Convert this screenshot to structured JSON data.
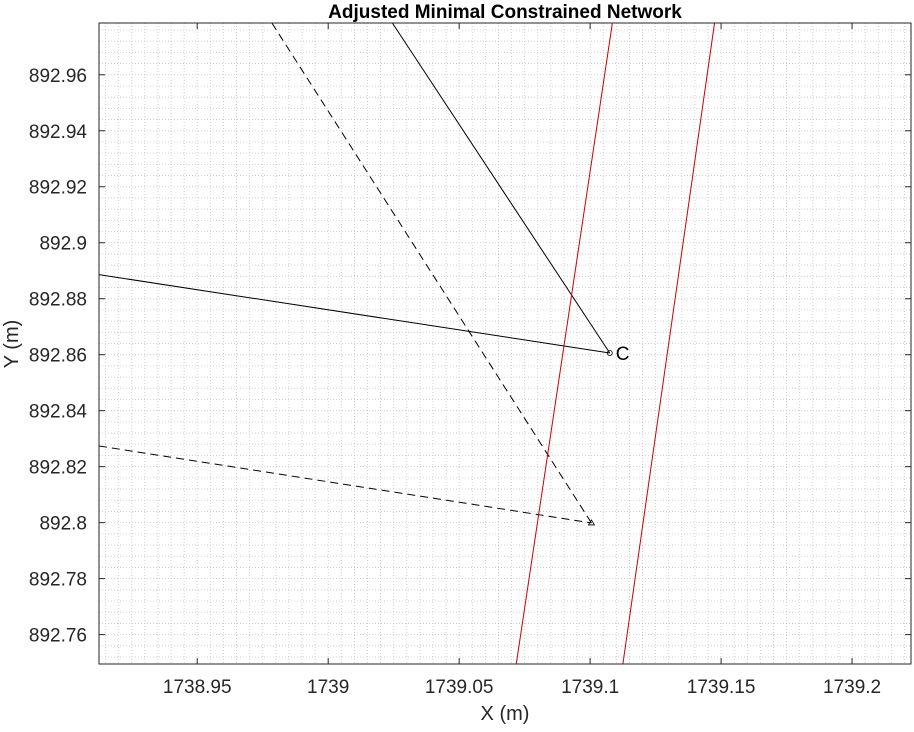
{
  "chart_data": {
    "type": "line",
    "title": "Adjusted Minimal Constrained Network",
    "xlabel": "X (m)",
    "ylabel": "Y (m)",
    "xlim": [
      1738.9125,
      1739.2225
    ],
    "ylim": [
      892.7495,
      892.9785
    ],
    "grid": "minor-dotted",
    "xticks": [
      1738.95,
      1739,
      1739.05,
      1739.1,
      1739.15,
      1739.2
    ],
    "xtick_labels": [
      "1738.95",
      "1739",
      "1739.05",
      "1739.1",
      "1739.15",
      "1739.2"
    ],
    "yticks": [
      892.76,
      892.78,
      892.8,
      892.82,
      892.84,
      892.86,
      892.88,
      892.9,
      892.92,
      892.94,
      892.96
    ],
    "ytick_labels": [
      "892.76",
      "892.78",
      "892.8",
      "892.82",
      "892.84",
      "892.86",
      "892.88",
      "892.9",
      "892.92",
      "892.94",
      "892.96"
    ],
    "series": [
      {
        "style": "solid",
        "color": "#000000",
        "points": [
          [
            1738.9125,
            892.8886
          ],
          [
            1739.1075,
            892.8606
          ]
        ]
      },
      {
        "style": "solid",
        "color": "#000000",
        "points": [
          [
            1739.0245,
            892.9785
          ],
          [
            1739.1075,
            892.8606
          ]
        ]
      },
      {
        "style": "dashed",
        "color": "#000000",
        "points": [
          [
            1738.9125,
            892.8274
          ],
          [
            1739.1005,
            892.7999
          ]
        ]
      },
      {
        "style": "dashed",
        "color": "#000000",
        "points": [
          [
            1738.9785,
            892.9785
          ],
          [
            1739.1005,
            892.7999
          ]
        ]
      },
      {
        "style": "solid",
        "color": "#cc0000",
        "points": [
          [
            1739.0718,
            892.7495
          ],
          [
            1739.1085,
            892.9785
          ]
        ]
      },
      {
        "style": "solid",
        "color": "#cc0000",
        "points": [
          [
            1739.1125,
            892.7495
          ],
          [
            1739.1475,
            892.9785
          ]
        ]
      }
    ],
    "markers": [
      {
        "shape": "circle",
        "x": 1739.1075,
        "y": 892.8606
      },
      {
        "shape": "triangle",
        "x": 1739.1005,
        "y": 892.7999
      }
    ],
    "annotations": [
      {
        "text": "C",
        "x": 1739.1075,
        "y": 892.8606
      }
    ]
  }
}
